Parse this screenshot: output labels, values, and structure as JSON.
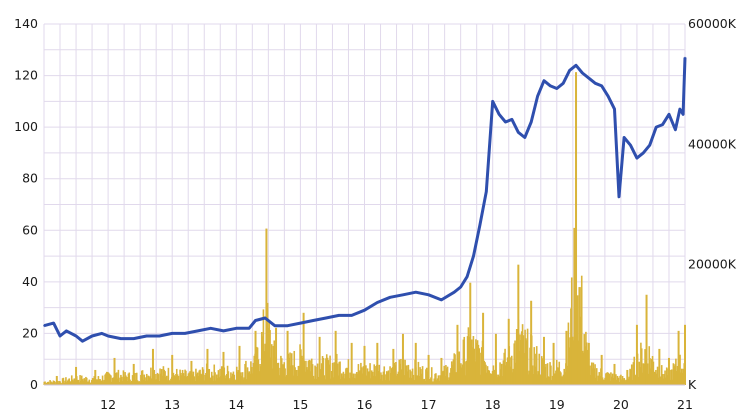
{
  "chart_data": {
    "type": "line",
    "title": "",
    "xlabel": "",
    "ylabel": "",
    "x_ticks": [
      "12",
      "13",
      "14",
      "15",
      "16",
      "17",
      "18",
      "19",
      "20",
      "21"
    ],
    "xlim": [
      11,
      21
    ],
    "y_left_ticks": [
      "0",
      "20",
      "40",
      "60",
      "80",
      "100",
      "120",
      "140"
    ],
    "ylim_left": [
      0,
      140
    ],
    "y_right_ticks": [
      "K",
      "20000K",
      "40000K",
      "60000K"
    ],
    "ylim_right": [
      0,
      60000
    ],
    "grid": true,
    "colors": {
      "price": "#2f4fae",
      "volume": "#d9b43a",
      "grid": "#e1d9ec",
      "text": "#1a1a1a"
    },
    "series": [
      {
        "axis": "left",
        "kind": "line",
        "x": [
          11.0,
          11.15,
          11.25,
          11.35,
          11.5,
          11.6,
          11.75,
          11.9,
          12.0,
          12.2,
          12.4,
          12.6,
          12.8,
          13.0,
          13.2,
          13.4,
          13.6,
          13.8,
          14.0,
          14.2,
          14.3,
          14.45,
          14.6,
          14.8,
          15.0,
          15.2,
          15.4,
          15.6,
          15.8,
          16.0,
          16.2,
          16.4,
          16.6,
          16.8,
          17.0,
          17.2,
          17.4,
          17.5,
          17.6,
          17.7,
          17.8,
          17.9,
          18.0,
          18.1,
          18.2,
          18.3,
          18.4,
          18.5,
          18.6,
          18.7,
          18.8,
          18.9,
          19.0,
          19.1,
          19.2,
          19.3,
          19.4,
          19.5,
          19.6,
          19.7,
          19.8,
          19.9,
          19.97,
          20.05,
          20.15,
          20.25,
          20.35,
          20.45,
          20.55,
          20.65,
          20.75,
          20.85,
          20.92,
          20.97,
          21.0
        ],
        "values": [
          23,
          24,
          19,
          21,
          19,
          17,
          19,
          20,
          19,
          18,
          18,
          19,
          19,
          20,
          20,
          21,
          22,
          21,
          22,
          22,
          25,
          26,
          23,
          23,
          24,
          25,
          26,
          27,
          27,
          29,
          32,
          34,
          35,
          36,
          35,
          33,
          36,
          38,
          42,
          50,
          62,
          75,
          110,
          105,
          102,
          103,
          98,
          96,
          102,
          112,
          118,
          116,
          115,
          117,
          122,
          124,
          121,
          119,
          117,
          116,
          112,
          107,
          73,
          96,
          93,
          88,
          90,
          93,
          100,
          101,
          105,
          99,
          107,
          105,
          127
        ]
      },
      {
        "axis": "right",
        "kind": "bar",
        "x": [
          11.2,
          11.5,
          11.8,
          12.1,
          12.4,
          12.7,
          13.0,
          13.3,
          13.55,
          13.8,
          14.05,
          14.3,
          14.47,
          14.62,
          14.8,
          15.05,
          15.3,
          15.55,
          15.8,
          16.0,
          16.2,
          16.45,
          16.6,
          16.8,
          17.0,
          17.2,
          17.45,
          17.65,
          17.85,
          18.05,
          18.25,
          18.4,
          18.6,
          18.8,
          18.95,
          19.15,
          19.3,
          19.5,
          19.7,
          19.9,
          20.1,
          20.25,
          20.4,
          20.6,
          20.75,
          20.9,
          21.0
        ],
        "values": [
          1500,
          3000,
          2500,
          4500,
          3500,
          6000,
          5000,
          4000,
          6000,
          5500,
          6500,
          9000,
          26000,
          9500,
          9000,
          12000,
          8000,
          9000,
          7000,
          6500,
          7000,
          6000,
          8500,
          7000,
          5000,
          4500,
          10000,
          17000,
          12000,
          8500,
          11000,
          20000,
          14000,
          8000,
          7000,
          9000,
          52000,
          7000,
          5000,
          3500,
          2500,
          10000,
          15000,
          6000,
          4500,
          9000,
          10000
        ]
      }
    ]
  }
}
